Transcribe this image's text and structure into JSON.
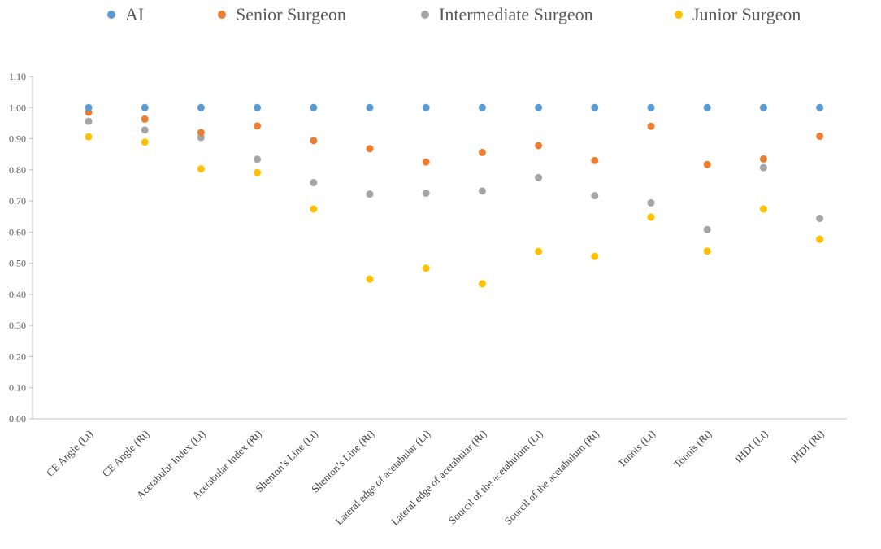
{
  "chart_data": {
    "type": "scatter",
    "title": "",
    "xlabel": "",
    "ylabel": "",
    "ylim": [
      0,
      1.1
    ],
    "yticks": [
      "0.00",
      "0.10",
      "0.20",
      "0.30",
      "0.40",
      "0.50",
      "0.60",
      "0.70",
      "0.80",
      "0.90",
      "1.00",
      "1.10"
    ],
    "grid": false,
    "legend_position": "top",
    "categories": [
      "CE Angle (Lt)",
      "CE Angle (Rt)",
      "Acetabular Index (Lt)",
      "Acetabular Index (Rt)",
      "Shenton’s Line (Lt)",
      "Shenton’s Line (Rt)",
      "Lateral edge of acetabular  (Lt)",
      "Lateral edge of acetabular  (Rt)",
      "Sourcil of the acetabulum (Lt)",
      "Sourcil of the acetabulum (Rt)",
      "Tonnis (Lt)",
      "Tonnis (Rt)",
      "IHDI (Lt)",
      "IHDI (Rt)"
    ],
    "series": [
      {
        "name": "AI",
        "color": "#5B9BD5",
        "values": [
          1.0,
          1.0,
          1.0,
          1.0,
          1.0,
          1.0,
          1.0,
          1.0,
          1.0,
          1.0,
          1.0,
          1.0,
          1.0,
          1.0
        ]
      },
      {
        "name": "Senior Surgeon",
        "color": "#ED7D31",
        "values": [
          0.985,
          0.963,
          0.92,
          0.941,
          0.894,
          0.868,
          0.825,
          0.856,
          0.878,
          0.83,
          0.94,
          0.817,
          0.835,
          0.908
        ]
      },
      {
        "name": "Intermediate Surgeon",
        "color": "#A5A5A5",
        "values": [
          0.956,
          0.928,
          0.904,
          0.834,
          0.759,
          0.722,
          0.725,
          0.732,
          0.775,
          0.717,
          0.694,
          0.608,
          0.807,
          0.644
        ]
      },
      {
        "name": "Junior Surgeon",
        "color": "#FFC000",
        "values": [
          0.906,
          0.889,
          0.803,
          0.791,
          0.674,
          0.449,
          0.484,
          0.434,
          0.538,
          0.522,
          0.648,
          0.539,
          0.674,
          0.577
        ]
      }
    ]
  }
}
